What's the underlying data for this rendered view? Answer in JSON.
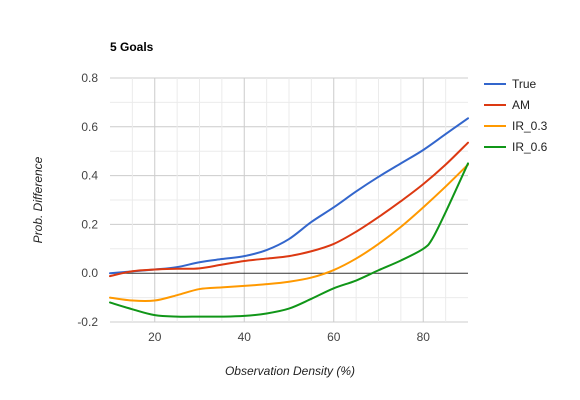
{
  "chart_data": {
    "type": "line",
    "title": "5 Goals",
    "xlabel": "Observation Density (%)",
    "ylabel": "Prob. Difference",
    "xlim": [
      10,
      90
    ],
    "ylim": [
      -0.2,
      0.8
    ],
    "xticks": [
      "20",
      "40",
      "60",
      "80"
    ],
    "yticks": [
      "0.8",
      "0.6",
      "0.4",
      "0.2",
      "0.0",
      "-0.2"
    ],
    "legend": "right",
    "grid": true,
    "series": [
      {
        "name": "True",
        "color": "#3366cc",
        "x": [
          10,
          20,
          25,
          30,
          35,
          40,
          45,
          50,
          55,
          60,
          65,
          70,
          75,
          80,
          85,
          90
        ],
        "y": [
          0.0,
          0.015,
          0.025,
          0.045,
          0.058,
          0.07,
          0.095,
          0.14,
          0.21,
          0.27,
          0.335,
          0.395,
          0.45,
          0.505,
          0.57,
          0.635
        ]
      },
      {
        "name": "AM",
        "color": "#dc3912",
        "x": [
          10,
          15,
          20,
          25,
          30,
          35,
          40,
          45,
          50,
          55,
          60,
          65,
          70,
          75,
          80,
          85,
          90
        ],
        "y": [
          -0.012,
          0.008,
          0.015,
          0.018,
          0.02,
          0.035,
          0.05,
          0.06,
          0.07,
          0.09,
          0.12,
          0.17,
          0.23,
          0.295,
          0.365,
          0.445,
          0.535
        ]
      },
      {
        "name": "IR_0.3",
        "color": "#ff9900",
        "x": [
          10,
          15,
          20,
          25,
          30,
          35,
          40,
          45,
          50,
          55,
          60,
          65,
          70,
          75,
          80,
          85,
          90
        ],
        "y": [
          -0.1,
          -0.112,
          -0.112,
          -0.09,
          -0.065,
          -0.058,
          -0.052,
          -0.045,
          -0.035,
          -0.018,
          0.013,
          0.06,
          0.12,
          0.19,
          0.27,
          0.355,
          0.445
        ]
      },
      {
        "name": "IR_0.6",
        "color": "#109618",
        "x": [
          10,
          15,
          20,
          25,
          30,
          35,
          40,
          45,
          50,
          55,
          60,
          65,
          70,
          75,
          80,
          82,
          85,
          90
        ],
        "y": [
          -0.12,
          -0.148,
          -0.172,
          -0.178,
          -0.178,
          -0.178,
          -0.175,
          -0.165,
          -0.145,
          -0.105,
          -0.062,
          -0.03,
          0.012,
          0.052,
          0.1,
          0.14,
          0.25,
          0.45
        ]
      }
    ]
  }
}
